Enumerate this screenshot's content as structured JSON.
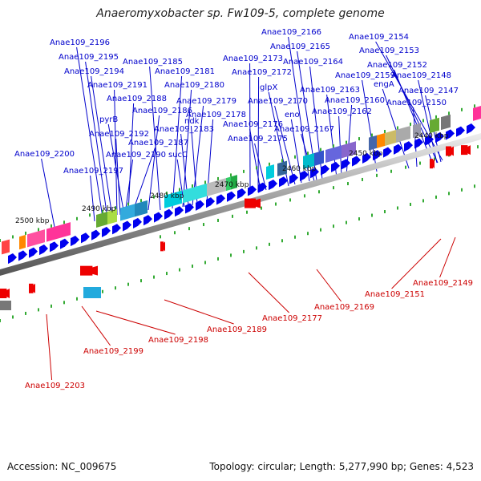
{
  "title": "Anaeromyxobacter sp. Fw109-5, complete genome",
  "footer": {
    "accession": "Accession: NC_009675",
    "summary": "Topology: circular; Length: 5,277,990 bp; Genes: 4,523"
  },
  "scale_labels": [
    "2440 kbp",
    "2450 kbp",
    "2460 kbp",
    "2470 kbp",
    "2480 kbp",
    "2490 kbp",
    "2500 kbp"
  ],
  "forward_labels": [
    "Anae109_2196",
    "Anae109_2195",
    "Anae109_2194",
    "Anae109_2191",
    "Anae109_2188",
    "pyrB",
    "Anae109_2192",
    "Anae109_2187",
    "Anae109_2190",
    "Anae109_2197",
    "Anae109_2200",
    "Anae109_2185",
    "Anae109_2181",
    "Anae109_2180",
    "Anae109_2186",
    "Anae109_2179",
    "Anae109_2183",
    "Anae109_2178",
    "ndk",
    "sucC",
    "Anae109_2173",
    "Anae109_2172",
    "Anae109_2176",
    "Anae109_2175",
    "Anae109_2166",
    "Anae109_2165",
    "Anae109_2164",
    "glpX",
    "Anae109_2170",
    "eno",
    "Anae109_2167",
    "Anae109_2163",
    "Anae109_2160",
    "Anae109_2162",
    "Anae109_2154",
    "Anae109_2153",
    "Anae109_2152",
    "Anae109_2159",
    "Anae109_2148",
    "engA",
    "Anae109_2147",
    "Anae109_2150"
  ],
  "reverse_labels": [
    "Anae109_2149",
    "Anae109_2151",
    "Anae109_2169",
    "Anae109_2177",
    "Anae109_2189",
    "Anae109_2198",
    "Anae109_2199",
    "Anae109_2203"
  ],
  "colors": {
    "forward_text": "#0000cc",
    "reverse_text": "#cc0000",
    "gene_arrow": "#0000ee",
    "reverse_gene": "#ee0000",
    "backbone": "#888888",
    "tick": "#33aa33"
  }
}
